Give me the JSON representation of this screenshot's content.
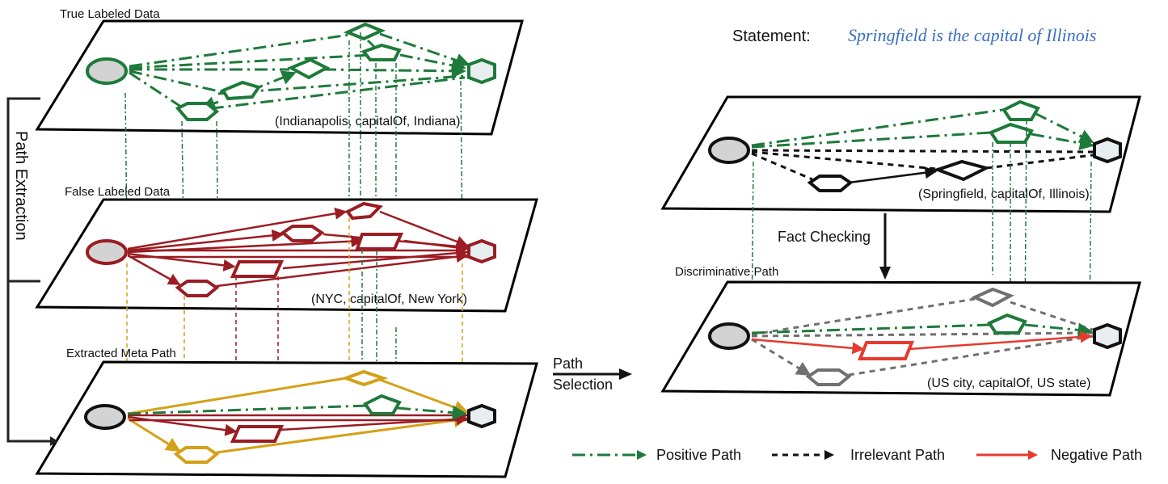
{
  "planes": {
    "true_labeled": {
      "title": "True Labeled Data",
      "triple": "(Indianapolis, capitalOf, Indiana)"
    },
    "false_labeled": {
      "title": "False Labeled Data",
      "triple": "(NYC, capitalOf, New York)"
    },
    "meta_path": {
      "title": "Extracted Meta Path"
    },
    "statement_plane": {
      "triple": "(Springfield, capitalOf, Illinois)"
    },
    "discriminative": {
      "title": "Discriminative Path",
      "triple": "(US city, capitalOf, US state)"
    }
  },
  "bracket_label": "Path Extraction",
  "path_selection": {
    "line1": "Path",
    "line2": "Selection"
  },
  "fact_checking": "Fact Checking",
  "statement": {
    "label": "Statement:",
    "value": "Springfield is the capital of Illinois"
  },
  "legend": {
    "positive": "Positive Path",
    "irrelevant": "Irrelevant Path",
    "negative": "Negative Path"
  },
  "colors": {
    "positive": "#1e7a3a",
    "negative": "#9b1c23",
    "meta_gold": "#d4a017",
    "negative_red": "#e63a2e",
    "irrelevant": "#111111",
    "gray_node": "#707070",
    "statement_blue": "#3a6fc4"
  }
}
